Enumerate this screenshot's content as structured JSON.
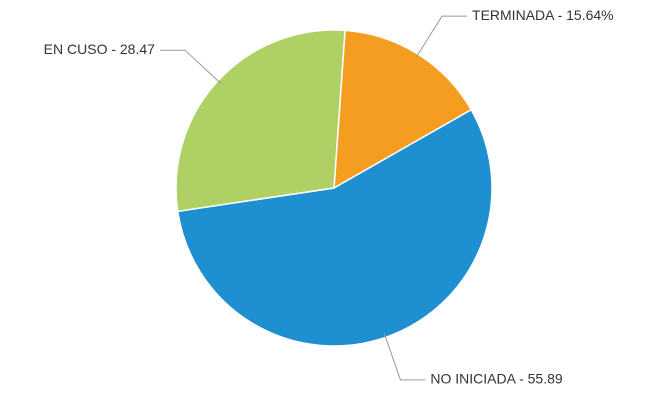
{
  "chart_data": {
    "type": "pie",
    "values": [
      15.64,
      55.89,
      28.47
    ],
    "value_labels": [
      "TERMINADA - 15.64%",
      "NO INICIADA - 55.89",
      "EN CUSO - 28.47"
    ],
    "colors": [
      "#f49d20",
      "#1e8fd0",
      "#aed064"
    ]
  }
}
